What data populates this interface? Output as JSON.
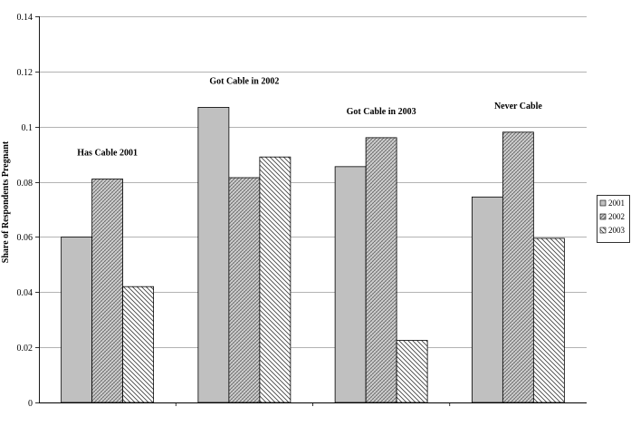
{
  "chart_data": {
    "type": "bar",
    "title": "",
    "xlabel": "",
    "ylabel": "Share of Respondents Pregnant",
    "ylim": [
      0,
      0.14
    ],
    "yticks": [
      "0",
      "0.02",
      "0.04",
      "0.06",
      "0.08",
      "0.1",
      "0.12",
      "0.14"
    ],
    "ytick_values": [
      0,
      0.02,
      0.04,
      0.06,
      0.08,
      0.1,
      0.12,
      0.14
    ],
    "grid": true,
    "legend_position": "right",
    "categories": [
      "Has Cable 2001",
      "Got Cable in 2002",
      "Got Cable in 2003",
      "Never Cable"
    ],
    "series": [
      {
        "name": "2001",
        "values": [
          0.06,
          0.107,
          0.0855,
          0.0745
        ],
        "fill": "solid",
        "color": "#c0c0c0"
      },
      {
        "name": "2002",
        "values": [
          0.081,
          0.0815,
          0.096,
          0.098
        ],
        "fill": "crosshatch",
        "color": "#c0c0c0"
      },
      {
        "name": "2003",
        "values": [
          0.042,
          0.089,
          0.0225,
          0.0595
        ],
        "fill": "diagonal",
        "color": "#ffffff"
      }
    ]
  }
}
